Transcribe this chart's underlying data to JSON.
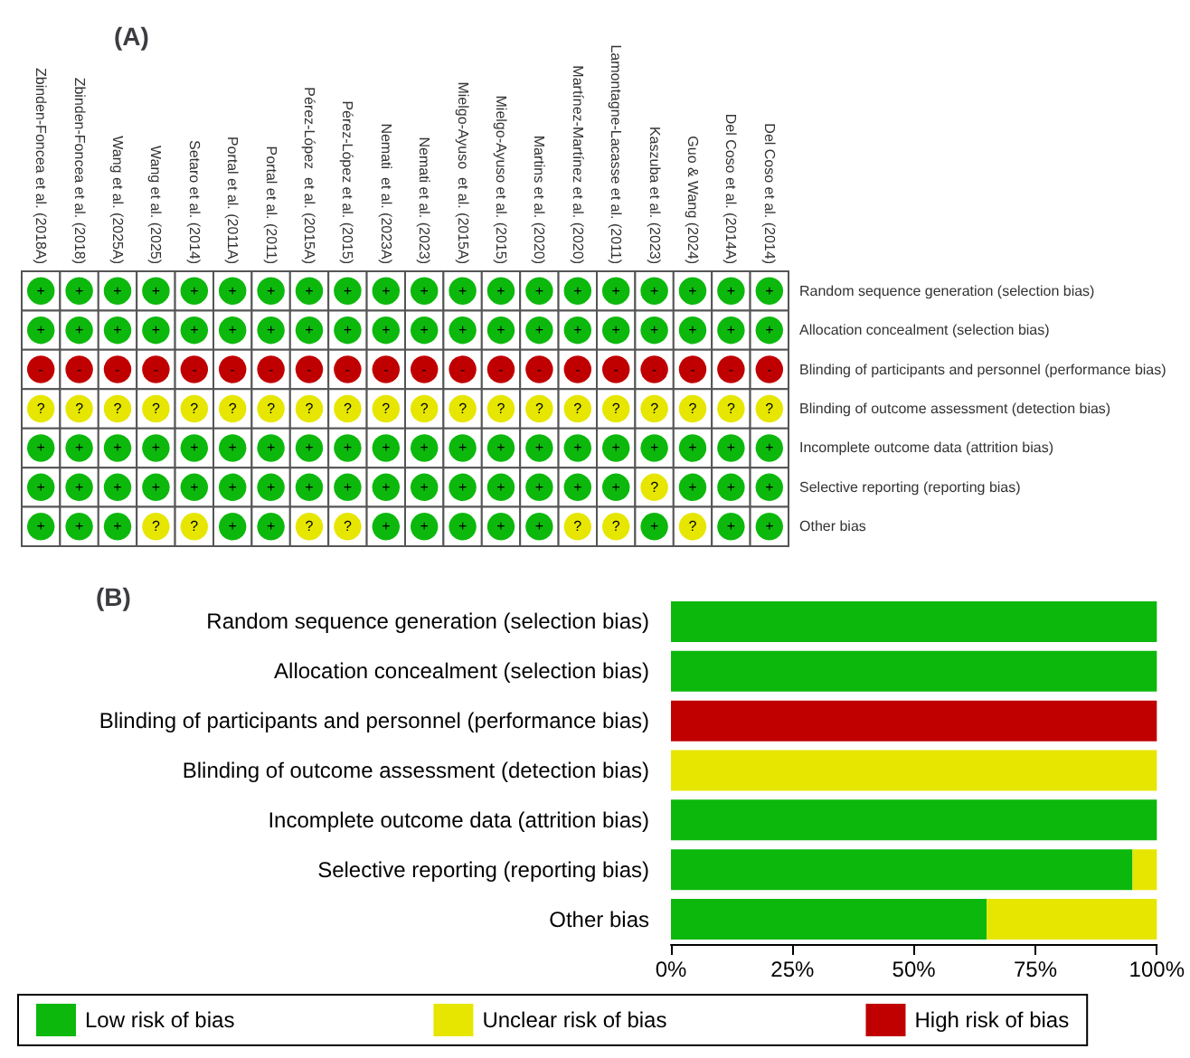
{
  "chart_data": [
    {
      "type": "heatmap",
      "title": "(A)",
      "categories": [
        "Zbinden-Foncea et al. (2018A)",
        "Zbinden-Foncea et al. (2018)",
        "Wang et al. (2025A)",
        "Wang et al. (2025)",
        "Setaro et al. (2014)",
        "Portal et al. (2011A)",
        "Portal et al. (2011)",
        "Pérez-López  et al. (2015A)",
        "Pérez-López et al. (2015)",
        "Nemati  et al. (2023A)",
        "Nemati et al. (2023)",
        "Mielgo-Ayuso  et al. (2015A)",
        "Mielgo-Ayuso et al. (2015)",
        "Martins et al. (2020)",
        "Martínez-Martínez et al. (2020)",
        "Lamontagne-Lacasse et al. (2011)",
        "Kaszuba et al. (2023)",
        "Guo & Wang (2024)",
        "Del Coso et al. (2014A)",
        "Del Coso et al. (2014)"
      ],
      "y_categories": [
        "Random sequence generation (selection bias)",
        "Allocation concealment (selection bias)",
        "Blinding of participants and personnel (performance bias)",
        "Blinding of outcome assessment (detection bias)",
        "Incomplete outcome data (attrition bias)",
        "Selective reporting (reporting bias)",
        "Other bias"
      ],
      "cells": [
        [
          "+",
          "+",
          "+",
          "+",
          "+",
          "+",
          "+",
          "+",
          "+",
          "+",
          "+",
          "+",
          "+",
          "+",
          "+",
          "+",
          "+",
          "+",
          "+",
          "+"
        ],
        [
          "+",
          "+",
          "+",
          "+",
          "+",
          "+",
          "+",
          "+",
          "+",
          "+",
          "+",
          "+",
          "+",
          "+",
          "+",
          "+",
          "+",
          "+",
          "+",
          "+"
        ],
        [
          "-",
          "-",
          "-",
          "-",
          "-",
          "-",
          "-",
          "-",
          "-",
          "-",
          "-",
          "-",
          "-",
          "-",
          "-",
          "-",
          "-",
          "-",
          "-",
          "-"
        ],
        [
          "?",
          "?",
          "?",
          "?",
          "?",
          "?",
          "?",
          "?",
          "?",
          "?",
          "?",
          "?",
          "?",
          "?",
          "?",
          "?",
          "?",
          "?",
          "?",
          "?"
        ],
        [
          "+",
          "+",
          "+",
          "+",
          "+",
          "+",
          "+",
          "+",
          "+",
          "+",
          "+",
          "+",
          "+",
          "+",
          "+",
          "+",
          "+",
          "+",
          "+",
          "+"
        ],
        [
          "+",
          "+",
          "+",
          "+",
          "+",
          "+",
          "+",
          "+",
          "+",
          "+",
          "+",
          "+",
          "+",
          "+",
          "+",
          "+",
          "?",
          "+",
          "+",
          "+"
        ],
        [
          "+",
          "+",
          "+",
          "?",
          "?",
          "+",
          "+",
          "?",
          "?",
          "+",
          "+",
          "+",
          "+",
          "+",
          "?",
          "?",
          "+",
          "?",
          "+",
          "+"
        ]
      ],
      "colors": [
        [
          "#0cb80c",
          "#0cb80c",
          "#0cb80c",
          "#0cb80c",
          "#0cb80c",
          "#0cb80c",
          "#0cb80c",
          "#0cb80c",
          "#0cb80c",
          "#0cb80c",
          "#0cb80c",
          "#0cb80c",
          "#0cb80c",
          "#0cb80c",
          "#0cb80c",
          "#0cb80c",
          "#0cb80c",
          "#0cb80c",
          "#0cb80c",
          "#0cb80c"
        ],
        [
          "#0cb80c",
          "#0cb80c",
          "#0cb80c",
          "#0cb80c",
          "#0cb80c",
          "#0cb80c",
          "#0cb80c",
          "#0cb80c",
          "#0cb80c",
          "#0cb80c",
          "#0cb80c",
          "#0cb80c",
          "#0cb80c",
          "#0cb80c",
          "#0cb80c",
          "#0cb80c",
          "#0cb80c",
          "#0cb80c",
          "#0cb80c",
          "#0cb80c"
        ],
        [
          "#c00000",
          "#c00000",
          "#c00000",
          "#c00000",
          "#c00000",
          "#c00000",
          "#c00000",
          "#c00000",
          "#c00000",
          "#c00000",
          "#c00000",
          "#c00000",
          "#c00000",
          "#c00000",
          "#c00000",
          "#c00000",
          "#c00000",
          "#c00000",
          "#c00000",
          "#c00000"
        ],
        [
          "#e6e600",
          "#e6e600",
          "#e6e600",
          "#e6e600",
          "#e6e600",
          "#e6e600",
          "#e6e600",
          "#e6e600",
          "#e6e600",
          "#e6e600",
          "#e6e600",
          "#e6e600",
          "#e6e600",
          "#e6e600",
          "#e6e600",
          "#e6e600",
          "#e6e600",
          "#e6e600",
          "#e6e600",
          "#e6e600"
        ],
        [
          "#0cb80c",
          "#0cb80c",
          "#0cb80c",
          "#0cb80c",
          "#0cb80c",
          "#0cb80c",
          "#0cb80c",
          "#0cb80c",
          "#0cb80c",
          "#0cb80c",
          "#0cb80c",
          "#0cb80c",
          "#0cb80c",
          "#0cb80c",
          "#0cb80c",
          "#0cb80c",
          "#0cb80c",
          "#0cb80c",
          "#0cb80c",
          "#0cb80c"
        ],
        [
          "#0cb80c",
          "#0cb80c",
          "#0cb80c",
          "#0cb80c",
          "#0cb80c",
          "#0cb80c",
          "#0cb80c",
          "#0cb80c",
          "#0cb80c",
          "#0cb80c",
          "#0cb80c",
          "#0cb80c",
          "#0cb80c",
          "#0cb80c",
          "#0cb80c",
          "#0cb80c",
          "#e6e600",
          "#0cb80c",
          "#0cb80c",
          "#0cb80c"
        ],
        [
          "#0cb80c",
          "#0cb80c",
          "#0cb80c",
          "#e6e600",
          "#e6e600",
          "#0cb80c",
          "#0cb80c",
          "#e6e600",
          "#e6e600",
          "#0cb80c",
          "#0cb80c",
          "#0cb80c",
          "#0cb80c",
          "#0cb80c",
          "#e6e600",
          "#e6e600",
          "#0cb80c",
          "#e6e600",
          "#0cb80c",
          "#0cb80c"
        ]
      ]
    },
    {
      "type": "bar",
      "title": "(B)",
      "orientation": "horizontal",
      "stacked": true,
      "categories": [
        "Random sequence generation (selection bias)",
        "Allocation concealment (selection bias)",
        "Blinding of participants and personnel (performance bias)",
        "Blinding of outcome assessment (detection bias)",
        "Incomplete outcome data (attrition bias)",
        "Selective reporting (reporting bias)",
        "Other bias"
      ],
      "series": [
        {
          "name": "Low risk of bias",
          "color": "#0cb80c",
          "values": [
            100,
            100,
            0,
            0,
            100,
            95,
            65
          ]
        },
        {
          "name": "Unclear risk of bias",
          "color": "#e6e600",
          "values": [
            0,
            0,
            0,
            100,
            0,
            5,
            35
          ]
        },
        {
          "name": "High risk of bias",
          "color": "#c00000",
          "values": [
            0,
            0,
            100,
            0,
            0,
            0,
            0
          ]
        }
      ],
      "xlim": [
        0,
        100
      ],
      "xticks": [
        {
          "value": 0,
          "label": "0%"
        },
        {
          "value": 25,
          "label": "25%"
        },
        {
          "value": 50,
          "label": "50%"
        },
        {
          "value": 75,
          "label": "75%"
        },
        {
          "value": 100,
          "label": "100%"
        }
      ],
      "legend": "bottom"
    }
  ]
}
